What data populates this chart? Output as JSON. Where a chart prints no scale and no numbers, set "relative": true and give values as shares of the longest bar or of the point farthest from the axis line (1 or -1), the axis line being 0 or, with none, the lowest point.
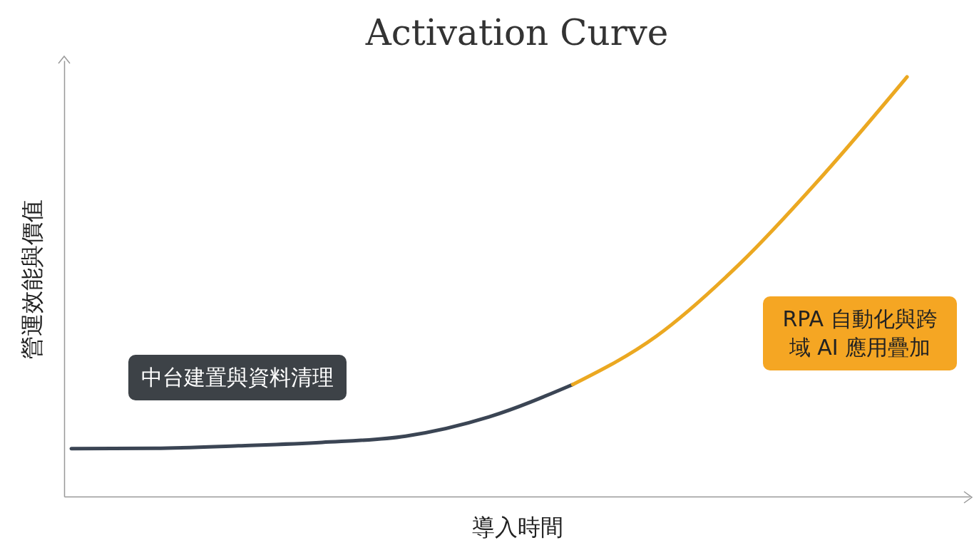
{
  "chart_data": {
    "type": "line",
    "title": "Activation Curve",
    "xlabel": "導入時間",
    "ylabel": "營運效能與價值",
    "relative": true,
    "tick_labels": false,
    "categories": [
      null,
      null,
      null,
      null,
      null,
      null,
      null,
      null,
      null,
      null,
      null
    ],
    "series": [
      {
        "color": "#3b4554",
        "values": [
          0.114,
          0.115,
          0.121,
          0.129,
          0.144,
          0.19,
          0.267,
          null,
          null,
          null,
          null
        ]
      },
      {
        "color": "#eba821",
        "values": [
          null,
          null,
          null,
          null,
          null,
          null,
          0.267,
          0.382,
          0.555,
          0.767,
          1.0
        ]
      }
    ],
    "annotations": [
      "中台建置與資料清理",
      "RPA 自動化與跨域 AI 應用疊加"
    ]
  }
}
